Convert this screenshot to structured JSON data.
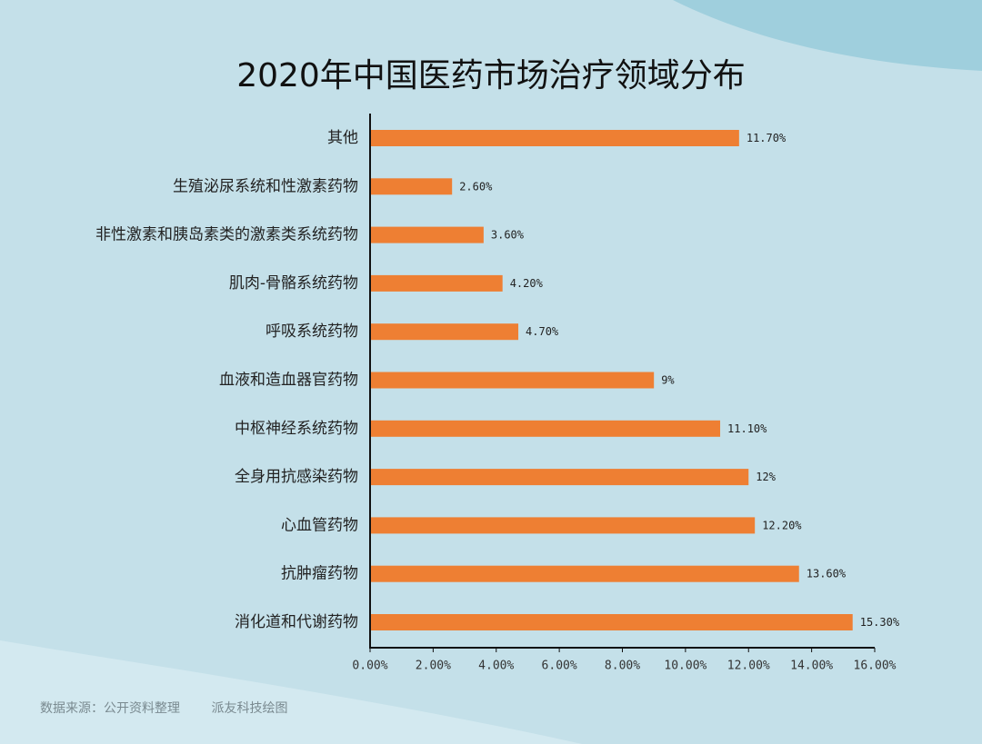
{
  "title": "2020年中国医药市场治疗领域分布",
  "footer": {
    "source": "数据来源：公开资料整理",
    "credit": "派友科技绘图"
  },
  "colors": {
    "background": "#c4e0e9",
    "bar": "#ee7f33",
    "axis": "#111111"
  },
  "chart_data": {
    "type": "bar",
    "orientation": "horizontal",
    "title": "2020年中国医药市场治疗领域分布",
    "xlabel": "",
    "ylabel": "",
    "xlim": [
      0,
      16
    ],
    "xticks": [
      0,
      2,
      4,
      6,
      8,
      10,
      12,
      14,
      16
    ],
    "xtick_labels": [
      "0.00%",
      "2.00%",
      "4.00%",
      "6.00%",
      "8.00%",
      "10.00%",
      "12.00%",
      "14.00%",
      "16.00%"
    ],
    "grid": false,
    "categories": [
      "其他",
      "生殖泌尿系统和性激素药物",
      "非性激素和胰岛素类的激素类系统药物",
      "肌肉-骨骼系统药物",
      "呼吸系统药物",
      "血液和造血器官药物",
      "中枢神经系统药物",
      "全身用抗感染药物",
      "心血管药物",
      "抗肿瘤药物",
      "消化道和代谢药物"
    ],
    "values": [
      11.7,
      2.6,
      3.6,
      4.2,
      4.7,
      9,
      11.1,
      12,
      12.2,
      13.6,
      15.3
    ],
    "value_labels": [
      "11.70%",
      "2.60%",
      "3.60%",
      "4.20%",
      "4.70%",
      "9%",
      "11.10%",
      "12%",
      "12.20%",
      "13.60%",
      "15.30%"
    ]
  }
}
